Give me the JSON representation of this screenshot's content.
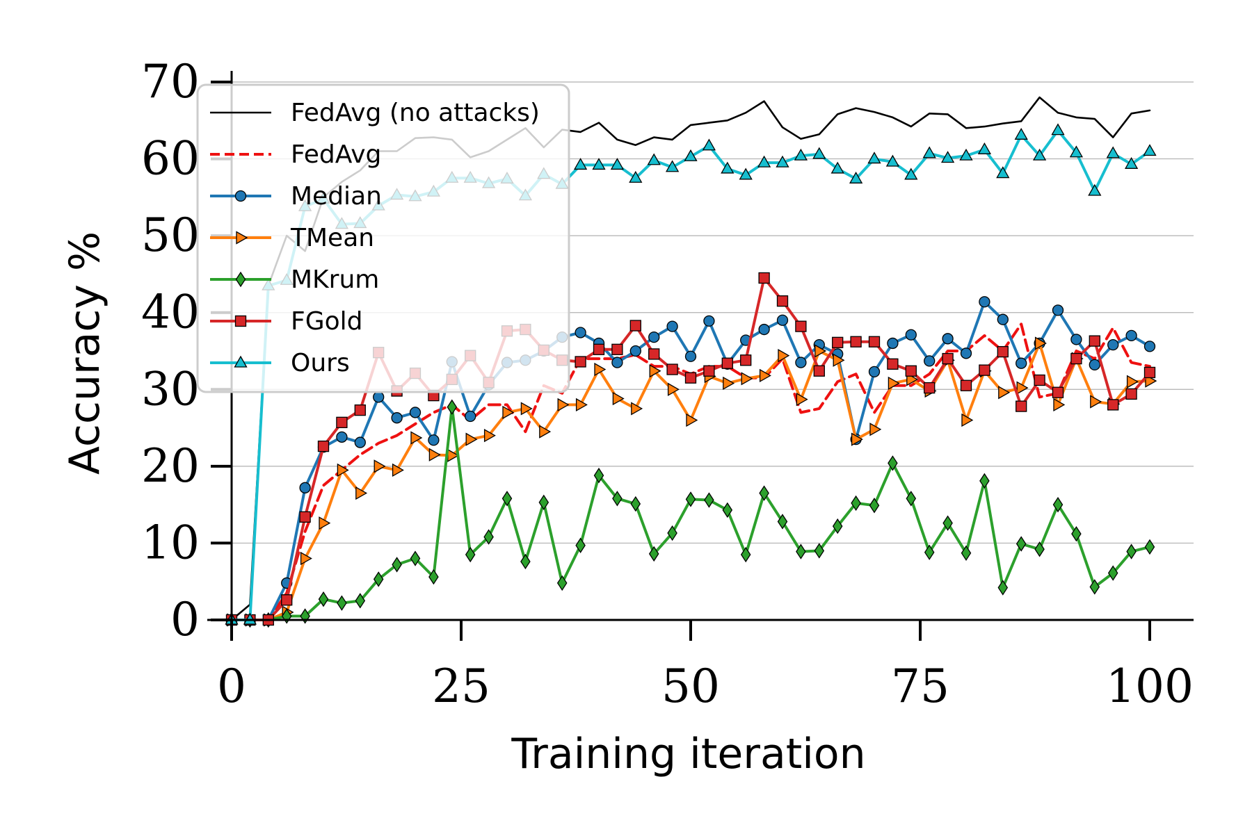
{
  "chart_data": {
    "type": "line",
    "title": "",
    "xlabel": "Training iteration",
    "ylabel": "Accuracy %",
    "xlim": [
      -2,
      106
    ],
    "ylim": [
      0,
      70
    ],
    "xticks": [
      0,
      25,
      50,
      75,
      100
    ],
    "yticks": [
      0,
      10,
      20,
      30,
      40,
      50,
      60,
      70
    ],
    "x_tick_labels": [
      "0",
      "25",
      "50",
      "75",
      "100"
    ],
    "y_tick_labels": [
      "0",
      "10",
      "20",
      "30",
      "40",
      "50",
      "60",
      "70"
    ],
    "grid": "horizontal",
    "legend_position": "upper-left",
    "x": [
      0,
      2,
      4,
      6,
      8,
      10,
      12,
      14,
      16,
      18,
      20,
      22,
      24,
      26,
      28,
      30,
      32,
      34,
      36,
      38,
      40,
      42,
      44,
      46,
      48,
      50,
      52,
      54,
      56,
      58,
      60,
      62,
      64,
      66,
      68,
      70,
      72,
      74,
      76,
      78,
      80,
      82,
      84,
      86,
      88,
      90,
      92,
      94,
      96,
      98,
      100
    ],
    "series": [
      {
        "name": "FedAvg (no attacks)",
        "color": "#000000",
        "dash": "",
        "marker": "none",
        "values": [
          0,
          2,
          43.5,
          50,
          48,
          55,
          57,
          58.5,
          61,
          61,
          62.7,
          62.8,
          62.5,
          60.2,
          61,
          62.5,
          64,
          61.5,
          63.8,
          63.5,
          64.7,
          62.5,
          61.8,
          62.8,
          62.5,
          64.4,
          64.7,
          65,
          66,
          67.5,
          64.1,
          62.6,
          63.2,
          65.8,
          66.6,
          66.1,
          65.4,
          64.2,
          65.9,
          65.8,
          64,
          64.2,
          64.6,
          64.9,
          68,
          66,
          65.4,
          65.2,
          62.8,
          65.9,
          66.3
        ]
      },
      {
        "name": "FedAvg",
        "color": "#ee1111",
        "dash": "16 8",
        "marker": "none",
        "values": [
          0,
          0,
          0,
          3.5,
          11.5,
          17.5,
          19.5,
          21.5,
          23,
          24,
          25.5,
          27,
          28,
          26,
          28,
          28,
          24.5,
          30.5,
          29.5,
          34,
          34,
          34,
          34.5,
          33,
          33,
          32,
          33,
          33,
          31.5,
          31.5,
          34,
          27,
          27.5,
          31,
          32,
          27,
          30.5,
          30.5,
          32,
          35,
          35,
          37,
          35,
          38.5,
          29,
          29.5,
          35,
          34,
          38,
          33.5,
          33
        ]
      },
      {
        "name": "Median",
        "color": "#1f77b4",
        "dash": "",
        "marker": "circle",
        "values": [
          0,
          0,
          0,
          4.8,
          17.2,
          22.5,
          23.8,
          23.1,
          29,
          26.3,
          27,
          23.4,
          33.6,
          26.5,
          30.6,
          33.5,
          33.8,
          35,
          36.8,
          37.4,
          36,
          33.5,
          35,
          36.8,
          38.2,
          34.3,
          38.9,
          33.3,
          36.4,
          37.8,
          39,
          33.5,
          35.8,
          34.6,
          23.5,
          32.3,
          36,
          37.1,
          33.7,
          36.6,
          34.7,
          41.4,
          39.1,
          33.4,
          36,
          40.3,
          36.5,
          33.2,
          35.8,
          37,
          35.6
        ]
      },
      {
        "name": "TMean",
        "color": "#ff7f0e",
        "dash": "",
        "marker": "tri-right",
        "values": [
          0,
          0,
          0,
          1,
          8,
          12.6,
          19.5,
          16.5,
          20,
          19.5,
          23.7,
          21.5,
          21.4,
          23.5,
          24,
          27,
          27.5,
          24.5,
          28,
          28,
          32.6,
          28.8,
          27.5,
          32.4,
          30,
          26,
          31.7,
          30.8,
          31.4,
          31.8,
          34.4,
          28.7,
          35,
          33.8,
          23.5,
          24.8,
          30.8,
          31.3,
          29.8,
          33.8,
          26,
          32.4,
          29.6,
          30.2,
          36,
          28,
          34,
          28.4,
          28.1,
          31,
          31.1
        ]
      },
      {
        "name": "MKrum",
        "color": "#2ca02c",
        "dash": "",
        "marker": "diamond",
        "values": [
          0,
          0,
          0,
          0.5,
          0.5,
          2.7,
          2.2,
          2.5,
          5.3,
          7.2,
          8,
          5.6,
          27.7,
          8.5,
          10.8,
          15.8,
          7.6,
          15.3,
          4.8,
          9.7,
          18.8,
          15.8,
          15.1,
          8.6,
          11.3,
          15.7,
          15.6,
          14.3,
          8.5,
          16.5,
          12.8,
          8.9,
          9,
          12.2,
          15.2,
          14.9,
          20.4,
          15.8,
          8.8,
          12.6,
          8.7,
          18.1,
          4.2,
          9.9,
          9.2,
          15,
          11.2,
          4.3,
          6.1,
          8.9,
          9.5
        ]
      },
      {
        "name": "FGold",
        "color": "#d62728",
        "dash": "",
        "marker": "square",
        "values": [
          0,
          0,
          0,
          2.6,
          13.4,
          22.6,
          25.7,
          27.3,
          34.8,
          29.8,
          32.1,
          29.2,
          31.3,
          34.4,
          30.9,
          37.6,
          37.8,
          35.1,
          33.8,
          33.6,
          35.2,
          35.2,
          38.3,
          34.6,
          32.6,
          31.5,
          32.4,
          33.4,
          33.8,
          44.5,
          41.5,
          38.2,
          32.4,
          36.1,
          36.2,
          36.2,
          33.3,
          32.4,
          30.2,
          34,
          30.5,
          32.5,
          34.9,
          27.8,
          31.2,
          29.6,
          34,
          36.3,
          28,
          29.4,
          32.2
        ]
      },
      {
        "name": "Ours",
        "color": "#17becf",
        "dash": "",
        "marker": "triangle",
        "values": [
          0,
          0,
          43.5,
          44.2,
          53.8,
          54.8,
          51.5,
          51.6,
          53.9,
          55.3,
          55.1,
          55.7,
          57.5,
          57.5,
          56.8,
          57.4,
          55.2,
          58,
          56.7,
          59.2,
          59.2,
          59.2,
          57.5,
          59.8,
          58.9,
          60.3,
          61.7,
          58.7,
          57.9,
          59.5,
          59.5,
          60.4,
          60.6,
          58.7,
          57.4,
          60,
          59.6,
          57.9,
          60.7,
          60.1,
          60.4,
          61.2,
          58.1,
          63.1,
          60.4,
          63.7,
          60.8,
          55.8,
          60.7,
          59.3,
          61
        ]
      }
    ]
  }
}
